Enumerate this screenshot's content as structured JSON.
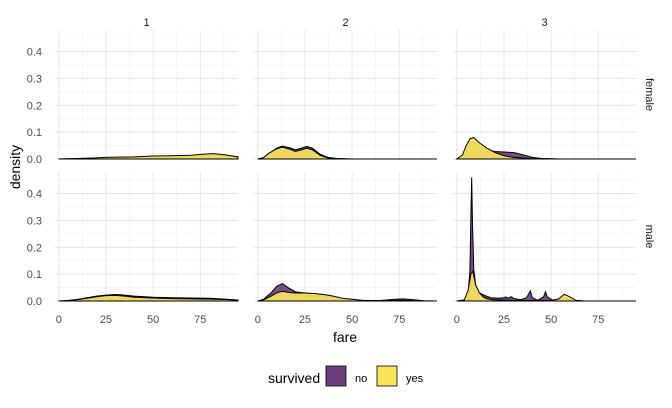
{
  "chart_data": {
    "type": "area",
    "facet_rows": [
      "female",
      "male"
    ],
    "facet_cols": [
      "1",
      "2",
      "3"
    ],
    "xlabel": "fare",
    "ylabel": "density",
    "xlim": [
      -2,
      95
    ],
    "ylim": [
      0,
      0.48
    ],
    "x_ticks": [
      0,
      25,
      50,
      75
    ],
    "x_tick_labels": [
      "0",
      "25",
      "50",
      "75"
    ],
    "y_ticks": [
      0,
      0.1,
      0.2,
      0.3,
      0.4
    ],
    "y_tick_labels": [
      "0.0",
      "0.1",
      "0.2",
      "0.3",
      "0.4"
    ],
    "grid": true,
    "legend": {
      "title": "survived",
      "position": "bottom",
      "entries": [
        {
          "label": "no",
          "color": "#6B3E7E"
        },
        {
          "label": "yes",
          "color": "#F9E55A"
        }
      ]
    },
    "panels": [
      {
        "row": "female",
        "col": "1",
        "series": [
          {
            "name": "no",
            "points": [
              [
                0,
                0
              ],
              [
                10,
                0.001
              ],
              [
                20,
                0.002
              ],
              [
                30,
                0.003
              ],
              [
                40,
                0.004
              ],
              [
                50,
                0.005
              ],
              [
                60,
                0.006
              ],
              [
                70,
                0.008
              ],
              [
                75,
                0.012
              ],
              [
                82,
                0.016
              ],
              [
                88,
                0.013
              ],
              [
                95,
                0.006
              ]
            ]
          },
          {
            "name": "yes",
            "points": [
              [
                0,
                0
              ],
              [
                10,
                0.002
              ],
              [
                20,
                0.004
              ],
              [
                25,
                0.006
              ],
              [
                30,
                0.007
              ],
              [
                40,
                0.008
              ],
              [
                50,
                0.011
              ],
              [
                60,
                0.012
              ],
              [
                70,
                0.014
              ],
              [
                77,
                0.018
              ],
              [
                82,
                0.02
              ],
              [
                88,
                0.016
              ],
              [
                95,
                0.008
              ]
            ]
          }
        ]
      },
      {
        "row": "female",
        "col": "2",
        "series": [
          {
            "name": "no",
            "points": [
              [
                0,
                0
              ],
              [
                3,
                0.004
              ],
              [
                6,
                0.02
              ],
              [
                10,
                0.04
              ],
              [
                13,
                0.048
              ],
              [
                17,
                0.042
              ],
              [
                20,
                0.034
              ],
              [
                23,
                0.04
              ],
              [
                26,
                0.047
              ],
              [
                29,
                0.04
              ],
              [
                33,
                0.018
              ],
              [
                37,
                0.006
              ],
              [
                42,
                0.002
              ],
              [
                50,
                0
              ],
              [
                95,
                0
              ]
            ]
          },
          {
            "name": "yes",
            "points": [
              [
                0,
                0
              ],
              [
                3,
                0.005
              ],
              [
                6,
                0.022
              ],
              [
                10,
                0.038
              ],
              [
                13,
                0.044
              ],
              [
                17,
                0.036
              ],
              [
                20,
                0.028
              ],
              [
                23,
                0.034
              ],
              [
                26,
                0.04
              ],
              [
                29,
                0.034
              ],
              [
                33,
                0.014
              ],
              [
                37,
                0.004
              ],
              [
                42,
                0.001
              ],
              [
                50,
                0
              ],
              [
                95,
                0
              ]
            ]
          }
        ]
      },
      {
        "row": "female",
        "col": "3",
        "series": [
          {
            "name": "no",
            "points": [
              [
                0,
                0
              ],
              [
                3,
                0.01
              ],
              [
                5,
                0.035
              ],
              [
                7,
                0.06
              ],
              [
                9,
                0.065
              ],
              [
                12,
                0.05
              ],
              [
                16,
                0.035
              ],
              [
                20,
                0.028
              ],
              [
                25,
                0.026
              ],
              [
                30,
                0.024
              ],
              [
                35,
                0.016
              ],
              [
                40,
                0.006
              ],
              [
                45,
                0.002
              ],
              [
                55,
                0
              ],
              [
                95,
                0
              ]
            ]
          },
          {
            "name": "yes",
            "points": [
              [
                0,
                0
              ],
              [
                3,
                0.015
              ],
              [
                5,
                0.05
              ],
              [
                7,
                0.075
              ],
              [
                9,
                0.08
              ],
              [
                12,
                0.06
              ],
              [
                16,
                0.04
              ],
              [
                20,
                0.025
              ],
              [
                25,
                0.012
              ],
              [
                30,
                0.006
              ],
              [
                40,
                0.001
              ],
              [
                55,
                0
              ],
              [
                95,
                0
              ]
            ]
          }
        ]
      },
      {
        "row": "male",
        "col": "1",
        "series": [
          {
            "name": "no",
            "points": [
              [
                0,
                0
              ],
              [
                5,
                0.002
              ],
              [
                10,
                0.006
              ],
              [
                15,
                0.012
              ],
              [
                20,
                0.018
              ],
              [
                25,
                0.022
              ],
              [
                30,
                0.024
              ],
              [
                35,
                0.022
              ],
              [
                40,
                0.018
              ],
              [
                50,
                0.014
              ],
              [
                60,
                0.012
              ],
              [
                70,
                0.011
              ],
              [
                80,
                0.01
              ],
              [
                90,
                0.006
              ],
              [
                95,
                0.004
              ]
            ]
          },
          {
            "name": "yes",
            "points": [
              [
                0,
                0
              ],
              [
                5,
                0.002
              ],
              [
                10,
                0.005
              ],
              [
                15,
                0.01
              ],
              [
                20,
                0.016
              ],
              [
                25,
                0.02
              ],
              [
                30,
                0.021
              ],
              [
                35,
                0.018
              ],
              [
                40,
                0.014
              ],
              [
                50,
                0.011
              ],
              [
                60,
                0.009
              ],
              [
                70,
                0.008
              ],
              [
                80,
                0.007
              ],
              [
                90,
                0.005
              ],
              [
                95,
                0.003
              ]
            ]
          }
        ]
      },
      {
        "row": "male",
        "col": "2",
        "series": [
          {
            "name": "no",
            "points": [
              [
                0,
                0
              ],
              [
                3,
                0.006
              ],
              [
                7,
                0.03
              ],
              [
                10,
                0.055
              ],
              [
                13,
                0.065
              ],
              [
                16,
                0.05
              ],
              [
                20,
                0.034
              ],
              [
                25,
                0.03
              ],
              [
                30,
                0.026
              ],
              [
                35,
                0.02
              ],
              [
                40,
                0.012
              ],
              [
                45,
                0.006
              ],
              [
                55,
                0.002
              ],
              [
                65,
                0.002
              ],
              [
                72,
                0.006
              ],
              [
                77,
                0.008
              ],
              [
                82,
                0.005
              ],
              [
                88,
                0.001
              ],
              [
                95,
                0
              ]
            ]
          },
          {
            "name": "yes",
            "points": [
              [
                0,
                0
              ],
              [
                3,
                0.004
              ],
              [
                7,
                0.018
              ],
              [
                10,
                0.03
              ],
              [
                13,
                0.036
              ],
              [
                16,
                0.032
              ],
              [
                20,
                0.03
              ],
              [
                25,
                0.03
              ],
              [
                30,
                0.028
              ],
              [
                35,
                0.024
              ],
              [
                40,
                0.018
              ],
              [
                45,
                0.01
              ],
              [
                55,
                0.003
              ],
              [
                65,
                0.001
              ],
              [
                72,
                0.002
              ],
              [
                77,
                0.002
              ],
              [
                82,
                0.001
              ],
              [
                88,
                0
              ],
              [
                95,
                0
              ]
            ]
          }
        ]
      },
      {
        "row": "male",
        "col": "3",
        "series": [
          {
            "name": "no",
            "points": [
              [
                0,
                0
              ],
              [
                4,
                0.002
              ],
              [
                6,
                0.02
              ],
              [
                7,
                0.12
              ],
              [
                7.5,
                0.32
              ],
              [
                7.9,
                0.46
              ],
              [
                8.3,
                0.3
              ],
              [
                9,
                0.12
              ],
              [
                10,
                0.06
              ],
              [
                12,
                0.03
              ],
              [
                15,
                0.02
              ],
              [
                18,
                0.012
              ],
              [
                22,
                0.01
              ],
              [
                25,
                0.012
              ],
              [
                26,
                0.015
              ],
              [
                27,
                0.01
              ],
              [
                29,
                0.016
              ],
              [
                30,
                0.01
              ],
              [
                32,
                0.007
              ],
              [
                34,
                0.005
              ],
              [
                37,
                0.012
              ],
              [
                39,
                0.038
              ],
              [
                40,
                0.012
              ],
              [
                43,
                0.003
              ],
              [
                46,
                0.015
              ],
              [
                47,
                0.034
              ],
              [
                48,
                0.015
              ],
              [
                51,
                0.002
              ],
              [
                54,
                0.006
              ],
              [
                57,
                0.012
              ],
              [
                60,
                0.007
              ],
              [
                63,
                0.002
              ],
              [
                68,
                0
              ],
              [
                95,
                0
              ]
            ]
          },
          {
            "name": "yes",
            "points": [
              [
                0,
                0
              ],
              [
                4,
                0.004
              ],
              [
                6,
                0.04
              ],
              [
                7.5,
                0.1
              ],
              [
                8.5,
                0.11
              ],
              [
                10,
                0.06
              ],
              [
                12,
                0.03
              ],
              [
                14,
                0.015
              ],
              [
                16,
                0.008
              ],
              [
                20,
                0.004
              ],
              [
                30,
                0.002
              ],
              [
                40,
                0.002
              ],
              [
                50,
                0.002
              ],
              [
                54,
                0.008
              ],
              [
                57,
                0.025
              ],
              [
                60,
                0.015
              ],
              [
                63,
                0.003
              ],
              [
                68,
                0
              ],
              [
                95,
                0
              ]
            ]
          }
        ]
      }
    ]
  }
}
